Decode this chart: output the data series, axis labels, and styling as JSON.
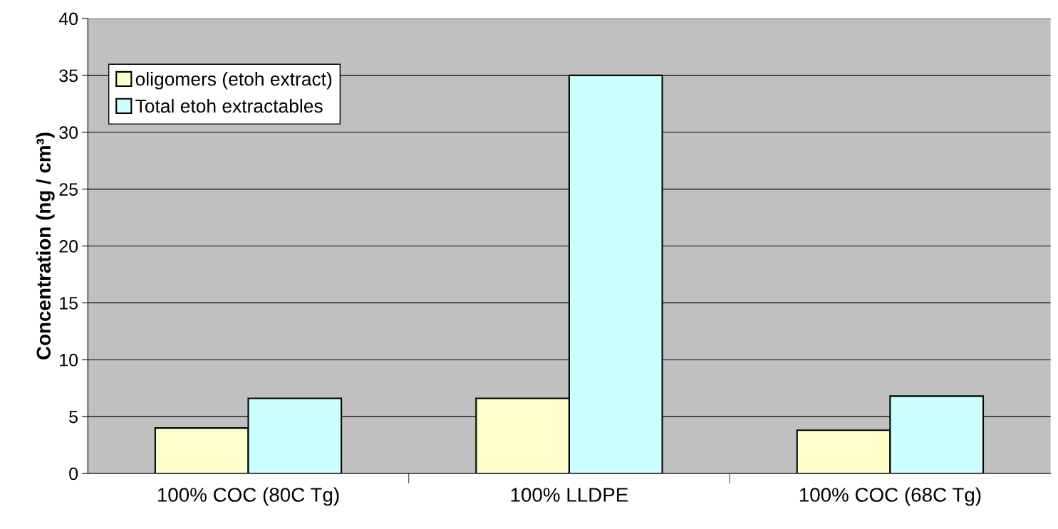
{
  "chart_data": {
    "type": "bar",
    "ylabel": "Concentration (ng / cm³)",
    "categories": [
      "100% COC (80C Tg)",
      "100% LLDPE",
      "100% COC (68C Tg)"
    ],
    "series": [
      {
        "name": "oligomers (etoh extract)",
        "color": "#ffffcc",
        "values": [
          4.0,
          6.6,
          3.8
        ]
      },
      {
        "name": "Total etoh extractables",
        "color": "#ccffff",
        "values": [
          6.6,
          35,
          6.8
        ]
      }
    ],
    "ylim": [
      0,
      40
    ],
    "yticks": [
      0,
      5,
      10,
      15,
      20,
      25,
      30,
      35,
      40
    ],
    "grid": "y",
    "legend": "top left"
  }
}
